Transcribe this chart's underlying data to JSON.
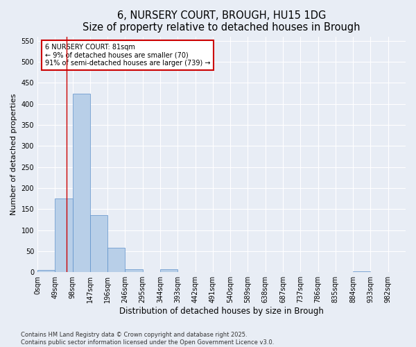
{
  "title": "6, NURSERY COURT, BROUGH, HU15 1DG",
  "subtitle": "Size of property relative to detached houses in Brough",
  "xlabel": "Distribution of detached houses by size in Brough",
  "ylabel": "Number of detached properties",
  "bar_values": [
    5,
    175,
    425,
    135,
    58,
    7,
    0,
    7,
    0,
    0,
    0,
    0,
    0,
    0,
    0,
    0,
    0,
    0,
    2,
    0,
    0
  ],
  "bin_labels": [
    "0sqm",
    "49sqm",
    "98sqm",
    "147sqm",
    "196sqm",
    "246sqm",
    "295sqm",
    "344sqm",
    "393sqm",
    "442sqm",
    "491sqm",
    "540sqm",
    "589sqm",
    "638sqm",
    "687sqm",
    "737sqm",
    "786sqm",
    "835sqm",
    "884sqm",
    "933sqm",
    "982sqm"
  ],
  "bar_color": "#b8cfe8",
  "bar_edge_color": "#5b8fc9",
  "vline_x": 1.65,
  "annotation_text": "6 NURSERY COURT: 81sqm\n← 9% of detached houses are smaller (70)\n91% of semi-detached houses are larger (739) →",
  "annotation_box_color": "#ffffff",
  "annotation_box_edge": "#cc0000",
  "vline_color": "#cc0000",
  "ylim": [
    0,
    560
  ],
  "yticks": [
    0,
    50,
    100,
    150,
    200,
    250,
    300,
    350,
    400,
    450,
    500,
    550
  ],
  "background_color": "#e8edf5",
  "plot_bg_color": "#e8edf5",
  "footer_text": "Contains HM Land Registry data © Crown copyright and database right 2025.\nContains public sector information licensed under the Open Government Licence v3.0.",
  "title_fontsize": 10.5,
  "subtitle_fontsize": 9.5,
  "xlabel_fontsize": 8.5,
  "ylabel_fontsize": 8,
  "tick_fontsize": 7,
  "annotation_fontsize": 7,
  "footer_fontsize": 6
}
